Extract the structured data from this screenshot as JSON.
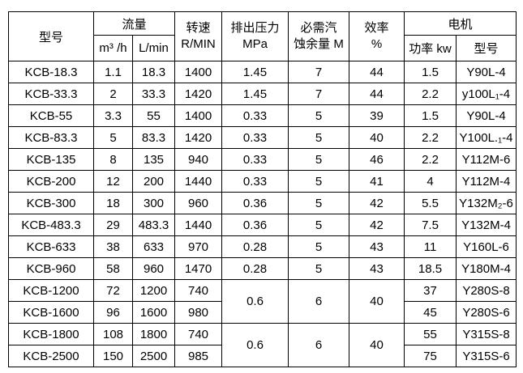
{
  "table": {
    "title_semantic": "KCB pump specification table",
    "colors": {
      "border": "#000000",
      "text": "#000000",
      "background": "#ffffff"
    },
    "header": {
      "model": "型号",
      "flow": "流量",
      "flow_m3h": "m³ /h",
      "flow_lmin": "L/min",
      "speed_line1": "转速",
      "speed_line2": "R/MIN",
      "pressure_line1": "排出压力",
      "pressure_line2": "MPa",
      "npsh_line1": "必需汽",
      "npsh_line2": "蚀余量 M",
      "efficiency_line1": "效率",
      "efficiency_line2": "%",
      "motor": "电机",
      "motor_power": "功率 kw",
      "motor_model": "型号"
    },
    "rows": [
      {
        "model": "KCB-18.3",
        "m3h": "1.1",
        "lmin": "18.3",
        "rpm": "1400",
        "mpa": "1.45",
        "npsh": "7",
        "eff": "44",
        "kw": "1.5",
        "motor": "Y90L-4"
      },
      {
        "model": "KCB-33.3",
        "m3h": "2",
        "lmin": "33.3",
        "rpm": "1420",
        "mpa": "1.45",
        "npsh": "7",
        "eff": "44",
        "kw": "2.2",
        "motor": "y100L₁-4"
      },
      {
        "model": "KCB-55",
        "m3h": "3.3",
        "lmin": "55",
        "rpm": "1400",
        "mpa": "0.33",
        "npsh": "5",
        "eff": "39",
        "kw": "1.5",
        "motor": "Y90L-4"
      },
      {
        "model": "KCB-83.3",
        "m3h": "5",
        "lmin": "83.3",
        "rpm": "1420",
        "mpa": "0.33",
        "npsh": "5",
        "eff": "40",
        "kw": "2.2",
        "motor": "Y100L.₁-4"
      },
      {
        "model": "KCB-135",
        "m3h": "8",
        "lmin": "135",
        "rpm": "940",
        "mpa": "0.33",
        "npsh": "5",
        "eff": "46",
        "kw": "2.2",
        "motor": "Y112M-6"
      },
      {
        "model": "KCB-200",
        "m3h": "12",
        "lmin": "200",
        "rpm": "1440",
        "mpa": "0.33",
        "npsh": "5",
        "eff": "41",
        "kw": "4",
        "motor": "Y112M-4"
      },
      {
        "model": "KCB-300",
        "m3h": "18",
        "lmin": "300",
        "rpm": "960",
        "mpa": "0.36",
        "npsh": "5",
        "eff": "42",
        "kw": "5.5",
        "motor": "Y132M₂-6"
      },
      {
        "model": "KCB-483.3",
        "m3h": "29",
        "lmin": "483.3",
        "rpm": "1440",
        "mpa": "0.36",
        "npsh": "5",
        "eff": "42",
        "kw": "7.5",
        "motor": "Y132M-4"
      },
      {
        "model": "KCB-633",
        "m3h": "38",
        "lmin": "633",
        "rpm": "970",
        "mpa": "0.28",
        "npsh": "5",
        "eff": "43",
        "kw": "11",
        "motor": "Y160L-6"
      },
      {
        "model": "KCB-960",
        "m3h": "58",
        "lmin": "960",
        "rpm": "1470",
        "mpa": "0.28",
        "npsh": "5",
        "eff": "43",
        "kw": "18.5",
        "motor": "Y180M-4"
      },
      {
        "model": "KCB-1200",
        "m3h": "72",
        "lmin": "1200",
        "rpm": "740",
        "mpa": "0.6",
        "npsh": "6",
        "eff": "40",
        "span": 2,
        "kw": "37",
        "motor": "Y280S-8"
      },
      {
        "model": "KCB-1600",
        "m3h": "96",
        "lmin": "1600",
        "rpm": "980",
        "kw": "45",
        "motor": "Y280S-6"
      },
      {
        "model": "KCB-1800",
        "m3h": "108",
        "lmin": "1800",
        "rpm": "740",
        "mpa": "0.6",
        "npsh": "6",
        "eff": "40",
        "span": 2,
        "kw": "55",
        "motor": "Y315S-8"
      },
      {
        "model": "KCB-2500",
        "m3h": "150",
        "lmin": "2500",
        "rpm": "985",
        "kw": "75",
        "motor": "Y315S-6"
      }
    ]
  }
}
